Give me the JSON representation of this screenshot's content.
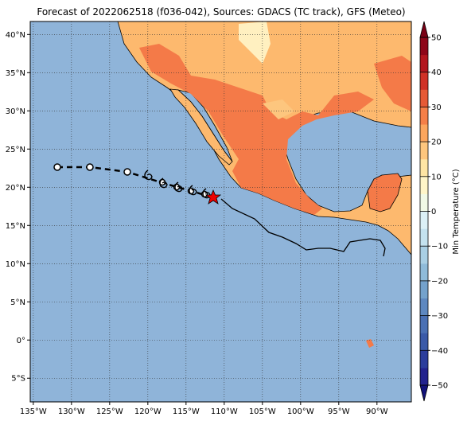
{
  "title": "Forecast of 2022062518 (f036-042), Sources: GDACS (TC track), GFS (Meteo)",
  "map": {
    "xlim": [
      -135.4,
      -85.5
    ],
    "ylim": [
      -8.1,
      41.7
    ],
    "lon_ticks": [
      {
        "value": -135,
        "label": "135°W"
      },
      {
        "value": -130,
        "label": "130°W"
      },
      {
        "value": -125,
        "label": "125°W"
      },
      {
        "value": -120,
        "label": "120°W"
      },
      {
        "value": -115,
        "label": "115°W"
      },
      {
        "value": -110,
        "label": "110°W"
      },
      {
        "value": -105,
        "label": "105°W"
      },
      {
        "value": -100,
        "label": "100°W"
      },
      {
        "value": -95,
        "label": "95°W"
      },
      {
        "value": -90,
        "label": "90°W"
      }
    ],
    "lat_ticks": [
      {
        "value": -5,
        "label": "5°S"
      },
      {
        "value": 0,
        "label": "0°"
      },
      {
        "value": 5,
        "label": "5°N"
      },
      {
        "value": 10,
        "label": "10°N"
      },
      {
        "value": 15,
        "label": "15°N"
      },
      {
        "value": 20,
        "label": "20°N"
      },
      {
        "value": 25,
        "label": "25°N"
      },
      {
        "value": 30,
        "label": "30°N"
      },
      {
        "value": 35,
        "label": "35°N"
      },
      {
        "value": 40,
        "label": "40°N"
      }
    ]
  },
  "colorbar": {
    "label": "Min Temperature (°C)",
    "lim": [
      -50,
      50
    ],
    "ticks": [
      {
        "value": -50,
        "label": "−50"
      },
      {
        "value": -40,
        "label": "−40"
      },
      {
        "value": -30,
        "label": "−30"
      },
      {
        "value": -20,
        "label": "−20"
      },
      {
        "value": -10,
        "label": "−10"
      },
      0,
      10,
      20,
      30,
      40,
      50
    ],
    "colors": [
      "#23238e",
      "#2c3e9c",
      "#3a5aa8",
      "#4a70b4",
      "#5e88c0",
      "#74a2cc",
      "#8fbbd9",
      "#a9cfe4",
      "#c4e2ef",
      "#dcf0f6",
      "#f1f9e6",
      "#fff5c8",
      "#fee5a4",
      "#fdc67e",
      "#fca65e",
      "#f57f48",
      "#e65a36",
      "#cf3127",
      "#b3161f",
      "#8e0619"
    ],
    "under": "#12127a",
    "over": "#7a0015"
  }
}
